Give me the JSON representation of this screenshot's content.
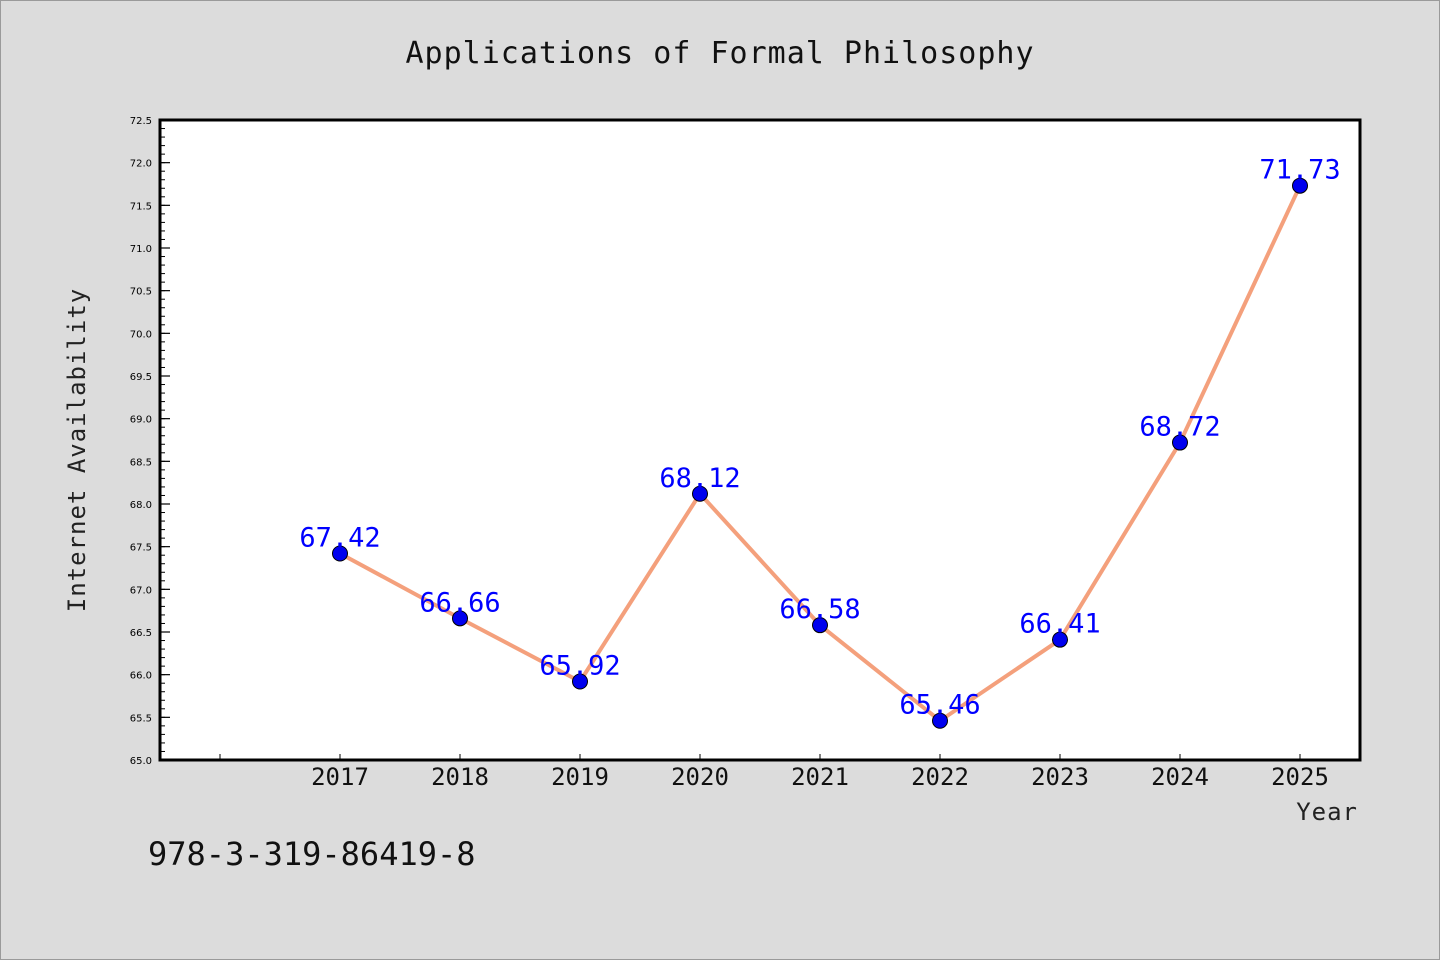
{
  "chart_data": {
    "type": "line",
    "title": "Applications of Formal Philosophy",
    "xlabel": "Year",
    "ylabel": "Internet Availability",
    "categories": [
      "2017",
      "2018",
      "2019",
      "2020",
      "2021",
      "2022",
      "2023",
      "2024",
      "2025"
    ],
    "series": [
      {
        "values": [
          67.42,
          66.66,
          65.92,
          68.12,
          66.58,
          65.46,
          66.41,
          68.72,
          71.73
        ],
        "line_color": "#f4a07c",
        "marker_color": "#0000ee"
      }
    ],
    "data_labels": [
      "67.42",
      "66.66",
      "65.92",
      "68.12",
      "66.58",
      "65.46",
      "66.41",
      "68.72",
      "71.73"
    ],
    "ylim": [
      65.0,
      72.5
    ],
    "yticks": [
      "65.0",
      "65.5",
      "66.0",
      "66.5",
      "67.0",
      "67.5",
      "68.0",
      "68.5",
      "69.0",
      "69.5",
      "70.0",
      "70.5",
      "71.0",
      "71.5",
      "72.0",
      "72.5"
    ],
    "grid": false,
    "data_label_color": "#0000ff",
    "annotation": "978-3-319-86419-8"
  }
}
